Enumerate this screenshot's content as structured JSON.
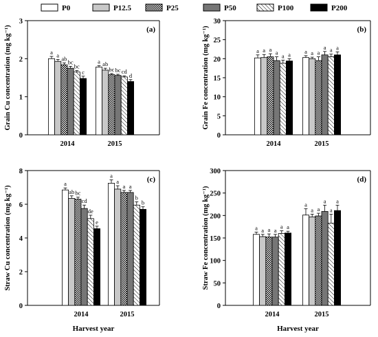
{
  "legend": {
    "entries": [
      "P0",
      "P12.5",
      "P25",
      "P50",
      "P100",
      "P200"
    ],
    "styles": [
      "white",
      "lightgray",
      "checker",
      "darkgray",
      "hatch",
      "black"
    ]
  },
  "colors": {
    "white": "#ffffff",
    "lightgray": "#c8c8c8",
    "darkgray": "#767676",
    "black": "#000000"
  },
  "shared_xlabel": "Harvest year",
  "chart_data": [
    {
      "type": "bar",
      "panel": "(a)",
      "categories": [
        "2014",
        "2015"
      ],
      "ylabel": "Grain Cu concentration (mg kg⁻¹)",
      "ylim": [
        0,
        3
      ],
      "yticks": [
        0,
        1,
        2,
        3
      ],
      "series": [
        {
          "name": "P0",
          "values": [
            2.0,
            1.78
          ],
          "errors": [
            0.06,
            0.04
          ],
          "letters": [
            "a",
            "a"
          ]
        },
        {
          "name": "P12.5",
          "values": [
            1.93,
            1.7
          ],
          "errors": [
            0.05,
            0.05
          ],
          "letters": [
            "a",
            "ab"
          ]
        },
        {
          "name": "P25",
          "values": [
            1.84,
            1.58
          ],
          "errors": [
            0.05,
            0.03
          ],
          "letters": [
            "ab",
            "bc"
          ]
        },
        {
          "name": "P50",
          "values": [
            1.75,
            1.56
          ],
          "errors": [
            0.05,
            0.03
          ],
          "letters": [
            "bc",
            "bc"
          ]
        },
        {
          "name": "P100",
          "values": [
            1.65,
            1.52
          ],
          "errors": [
            0.04,
            0.03
          ],
          "letters": [
            "bc",
            "cd"
          ]
        },
        {
          "name": "P200",
          "values": [
            1.48,
            1.4
          ],
          "errors": [
            0.06,
            0.05
          ],
          "letters": [
            "c",
            "d"
          ]
        }
      ]
    },
    {
      "type": "bar",
      "panel": "(b)",
      "categories": [
        "2014",
        "2015"
      ],
      "ylabel": "Grain Fe concentration (mg kg⁻¹)",
      "ylim": [
        0,
        30
      ],
      "yticks": [
        0,
        5,
        10,
        15,
        20,
        25,
        30
      ],
      "series": [
        {
          "name": "P0",
          "values": [
            20.2,
            20.3
          ],
          "errors": [
            0.8,
            0.5
          ],
          "letters": [
            "a",
            "a"
          ]
        },
        {
          "name": "P12.5",
          "values": [
            20.3,
            20.0
          ],
          "errors": [
            0.8,
            0.4
          ],
          "letters": [
            "a",
            "a"
          ]
        },
        {
          "name": "P25",
          "values": [
            20.5,
            19.5
          ],
          "errors": [
            0.8,
            1.0
          ],
          "letters": [
            "a",
            "a"
          ]
        },
        {
          "name": "P50",
          "values": [
            19.5,
            21.0
          ],
          "errors": [
            1.0,
            0.9
          ],
          "letters": [
            "a",
            "a"
          ]
        },
        {
          "name": "P100",
          "values": [
            18.8,
            20.5
          ],
          "errors": [
            0.8,
            0.7
          ],
          "letters": [
            "a",
            "a"
          ]
        },
        {
          "name": "P200",
          "values": [
            19.4,
            21.0
          ],
          "errors": [
            0.6,
            0.8
          ],
          "letters": [
            "a",
            "a"
          ]
        }
      ]
    },
    {
      "type": "bar",
      "panel": "(c)",
      "categories": [
        "2014",
        "2015"
      ],
      "ylabel": "Straw Cu concentration (mg kg⁻¹)",
      "ylim": [
        0,
        8
      ],
      "yticks": [
        0,
        2,
        4,
        6,
        8
      ],
      "series": [
        {
          "name": "P0",
          "values": [
            6.85,
            7.25
          ],
          "errors": [
            0.12,
            0.2
          ],
          "letters": [
            "a",
            "a"
          ]
        },
        {
          "name": "P12.5",
          "values": [
            6.35,
            6.9
          ],
          "errors": [
            0.15,
            0.2
          ],
          "letters": [
            "ab",
            "a"
          ]
        },
        {
          "name": "P25",
          "values": [
            6.3,
            6.7
          ],
          "errors": [
            0.12,
            0.12
          ],
          "letters": [
            "bc",
            "a"
          ]
        },
        {
          "name": "P50",
          "values": [
            5.75,
            6.7
          ],
          "errors": [
            0.2,
            0.12
          ],
          "letters": [
            "cd",
            "a"
          ]
        },
        {
          "name": "P100",
          "values": [
            5.15,
            5.95
          ],
          "errors": [
            0.2,
            0.2
          ],
          "letters": [
            "de",
            "b"
          ]
        },
        {
          "name": "P200",
          "values": [
            4.55,
            5.7
          ],
          "errors": [
            0.15,
            0.15
          ],
          "letters": [
            "e",
            "b"
          ]
        }
      ]
    },
    {
      "type": "bar",
      "panel": "(d)",
      "categories": [
        "2014",
        "2015"
      ],
      "ylabel": "Straw Fe concentration (mg kg⁻¹)",
      "ylim": [
        0,
        300
      ],
      "yticks": [
        0,
        50,
        100,
        150,
        200,
        250,
        300
      ],
      "series": [
        {
          "name": "P0",
          "values": [
            158,
            201
          ],
          "errors": [
            5,
            14
          ],
          "letters": [
            "a",
            "a"
          ]
        },
        {
          "name": "P12.5",
          "values": [
            153,
            197
          ],
          "errors": [
            5,
            6
          ],
          "letters": [
            "a",
            "a"
          ]
        },
        {
          "name": "P25",
          "values": [
            152,
            199
          ],
          "errors": [
            7,
            6
          ],
          "letters": [
            "a",
            "a"
          ]
        },
        {
          "name": "P50",
          "values": [
            152,
            209
          ],
          "errors": [
            6,
            14
          ],
          "letters": [
            "a",
            "a"
          ]
        },
        {
          "name": "P100",
          "values": [
            160,
            183
          ],
          "errors": [
            6,
            20
          ],
          "letters": [
            "a",
            "a"
          ]
        },
        {
          "name": "P200",
          "values": [
            161,
            211
          ],
          "errors": [
            4,
            12
          ],
          "letters": [
            "a",
            "a"
          ]
        }
      ]
    }
  ]
}
